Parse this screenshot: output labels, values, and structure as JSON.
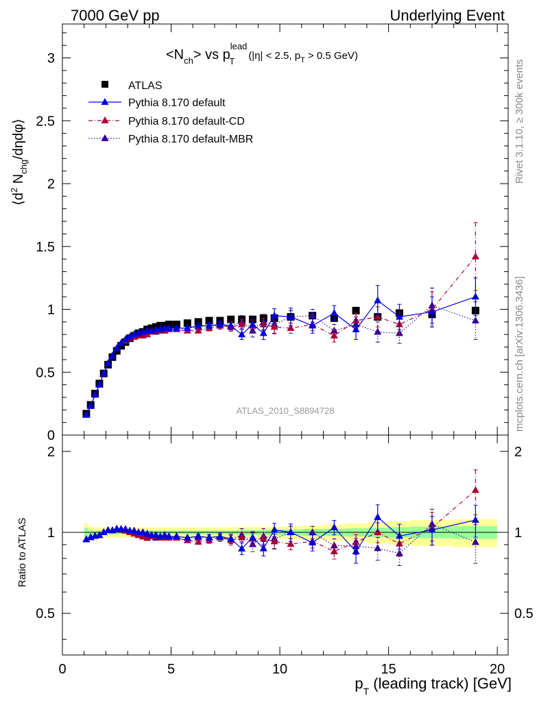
{
  "header": {
    "left": "7000 GeV pp",
    "right": "Underlying Event"
  },
  "plot_title": {
    "main": "<N",
    "sub1": "ch",
    "mid": "> vs p",
    "sup": "lead",
    "sub2": "T",
    "cuts_a": "(|η| < 2.5, p",
    "cuts_sub": "T",
    "cuts_b": " > 0.5 GeV)"
  },
  "side_labels": {
    "rivet": "Rivet 3.1.10, ≥ 300k events",
    "mcplots": "mcplots.cern.ch [arXiv:1306.3436]"
  },
  "analysis_label": "ATLAS_2010_S8894728",
  "ylabel_top": {
    "a": "⟨d",
    "sup": "2",
    "b": " N",
    "sub": "chg",
    "c": "/dηdφ⟩"
  },
  "ylabel_bottom": "Ratio to ATLAS",
  "xlabel": {
    "a": "p",
    "sub": "T",
    "b": " (leading track) [GeV]"
  },
  "legend": [
    "ATLAS",
    "Pythia 8.170 default",
    "Pythia 8.170 default-CD",
    "Pythia 8.170 default-MBR"
  ],
  "colors": {
    "data": "#000000",
    "default": "#0000dd",
    "cd": "#aa0033",
    "mbr": "#330099",
    "band_inner": "#99ff99",
    "band_outer": "#ffff99"
  },
  "chart_data": {
    "type": "scatter",
    "xlim": [
      0,
      20.5
    ],
    "ylim": [
      0,
      3.27
    ],
    "ratio_ylim": [
      0.35,
      2.3
    ],
    "x_ticks": [
      "0",
      "5",
      "10",
      "15",
      "20"
    ],
    "y_ticks": [
      "0",
      "0.5",
      "1",
      "1.5",
      "2",
      "2.5",
      "3"
    ],
    "ratio_ticks": [
      "0.5",
      "1",
      "2"
    ],
    "x": [
      1.1,
      1.3,
      1.5,
      1.7,
      1.9,
      2.1,
      2.3,
      2.5,
      2.7,
      2.9,
      3.1,
      3.3,
      3.5,
      3.7,
      3.9,
      4.1,
      4.3,
      4.5,
      4.7,
      4.9,
      5.25,
      5.75,
      6.25,
      6.75,
      7.25,
      7.75,
      8.25,
      8.75,
      9.25,
      9.75,
      10.5,
      11.5,
      12.5,
      13.5,
      14.5,
      15.5,
      17.0,
      19.0
    ],
    "series": [
      {
        "name": "ATLAS",
        "values": [
          0.17,
          0.24,
          0.33,
          0.41,
          0.49,
          0.56,
          0.62,
          0.67,
          0.71,
          0.74,
          0.77,
          0.79,
          0.81,
          0.82,
          0.84,
          0.85,
          0.86,
          0.87,
          0.87,
          0.88,
          0.88,
          0.89,
          0.9,
          0.91,
          0.91,
          0.92,
          0.92,
          0.92,
          0.93,
          0.93,
          0.94,
          0.95,
          0.93,
          0.99,
          0.94,
          0.97,
          0.96,
          0.99
        ],
        "errors": [
          0.005,
          0.005,
          0.005,
          0.005,
          0.005,
          0.005,
          0.005,
          0.005,
          0.005,
          0.005,
          0.005,
          0.005,
          0.005,
          0.005,
          0.005,
          0.005,
          0.006,
          0.006,
          0.006,
          0.006,
          0.007,
          0.008,
          0.009,
          0.01,
          0.011,
          0.012,
          0.013,
          0.014,
          0.015,
          0.016,
          0.018,
          0.02,
          0.022,
          0.025,
          0.03,
          0.035,
          0.04,
          0.06
        ]
      },
      {
        "name": "Pythia 8.170 default",
        "values": [
          0.16,
          0.23,
          0.32,
          0.4,
          0.49,
          0.57,
          0.63,
          0.69,
          0.73,
          0.76,
          0.78,
          0.8,
          0.81,
          0.82,
          0.83,
          0.83,
          0.84,
          0.84,
          0.85,
          0.85,
          0.85,
          0.85,
          0.87,
          0.87,
          0.88,
          0.87,
          0.8,
          0.88,
          0.81,
          0.95,
          0.94,
          0.87,
          0.97,
          0.84,
          1.07,
          0.94,
          0.98,
          1.1
        ],
        "errors": [
          0.004,
          0.004,
          0.005,
          0.005,
          0.005,
          0.006,
          0.006,
          0.006,
          0.007,
          0.007,
          0.008,
          0.008,
          0.009,
          0.009,
          0.01,
          0.01,
          0.01,
          0.012,
          0.012,
          0.014,
          0.012,
          0.015,
          0.018,
          0.022,
          0.028,
          0.035,
          0.04,
          0.045,
          0.05,
          0.055,
          0.07,
          0.06,
          0.06,
          0.08,
          0.12,
          0.1,
          0.12,
          0.15
        ]
      },
      {
        "name": "Pythia 8.170 default-CD",
        "values": [
          0.16,
          0.23,
          0.32,
          0.4,
          0.49,
          0.57,
          0.63,
          0.69,
          0.73,
          0.75,
          0.77,
          0.78,
          0.79,
          0.79,
          0.8,
          0.82,
          0.83,
          0.83,
          0.83,
          0.84,
          0.84,
          0.83,
          0.83,
          0.85,
          0.87,
          0.86,
          0.88,
          0.87,
          0.88,
          0.86,
          0.85,
          0.88,
          0.79,
          0.91,
          0.94,
          0.88,
          1.0,
          1.42
        ],
        "errors": [
          0.004,
          0.004,
          0.005,
          0.005,
          0.005,
          0.006,
          0.006,
          0.006,
          0.007,
          0.007,
          0.008,
          0.008,
          0.009,
          0.009,
          0.01,
          0.01,
          0.01,
          0.012,
          0.012,
          0.014,
          0.012,
          0.015,
          0.018,
          0.022,
          0.028,
          0.035,
          0.04,
          0.045,
          0.05,
          0.055,
          0.04,
          0.05,
          0.05,
          0.06,
          0.08,
          0.09,
          0.14,
          0.27
        ]
      },
      {
        "name": "Pythia 8.170 default-MBR",
        "values": [
          0.16,
          0.23,
          0.32,
          0.4,
          0.49,
          0.57,
          0.63,
          0.69,
          0.73,
          0.76,
          0.78,
          0.8,
          0.8,
          0.81,
          0.82,
          0.83,
          0.82,
          0.83,
          0.83,
          0.84,
          0.85,
          0.85,
          0.86,
          0.87,
          0.87,
          0.87,
          0.9,
          0.83,
          0.9,
          0.88,
          0.94,
          0.95,
          0.83,
          0.88,
          0.82,
          0.81,
          1.03,
          0.91
        ],
        "errors": [
          0.004,
          0.004,
          0.005,
          0.005,
          0.005,
          0.006,
          0.006,
          0.006,
          0.007,
          0.007,
          0.008,
          0.008,
          0.009,
          0.009,
          0.01,
          0.01,
          0.01,
          0.012,
          0.012,
          0.014,
          0.012,
          0.015,
          0.018,
          0.022,
          0.028,
          0.035,
          0.05,
          0.05,
          0.06,
          0.07,
          0.05,
          0.05,
          0.05,
          0.06,
          0.08,
          0.08,
          0.14,
          0.15
        ]
      }
    ],
    "ratio_band": {
      "x_edges": [
        1.0,
        1.2,
        1.4,
        1.6,
        1.8,
        2.0,
        2.2,
        2.4,
        2.6,
        2.8,
        3.0,
        3.2,
        3.4,
        3.6,
        3.8,
        4.0,
        4.2,
        4.4,
        4.6,
        4.8,
        5.0,
        5.5,
        6.0,
        6.5,
        7.0,
        7.5,
        8.0,
        8.5,
        9.0,
        9.5,
        10.0,
        11.0,
        12.0,
        13.0,
        14.0,
        15.0,
        16.0,
        18.0,
        20.0
      ],
      "inner": [
        0.04,
        0.02,
        0.015,
        0.015,
        0.015,
        0.015,
        0.015,
        0.015,
        0.015,
        0.015,
        0.015,
        0.015,
        0.015,
        0.015,
        0.015,
        0.015,
        0.015,
        0.015,
        0.015,
        0.015,
        0.015,
        0.015,
        0.015,
        0.015,
        0.015,
        0.015,
        0.02,
        0.02,
        0.02,
        0.025,
        0.025,
        0.03,
        0.03,
        0.035,
        0.04,
        0.045,
        0.05,
        0.055
      ],
      "outer": [
        0.08,
        0.05,
        0.045,
        0.045,
        0.045,
        0.045,
        0.045,
        0.045,
        0.045,
        0.045,
        0.045,
        0.045,
        0.045,
        0.045,
        0.045,
        0.045,
        0.045,
        0.045,
        0.045,
        0.045,
        0.045,
        0.045,
        0.045,
        0.045,
        0.045,
        0.045,
        0.05,
        0.05,
        0.05,
        0.05,
        0.055,
        0.06,
        0.07,
        0.08,
        0.09,
        0.1,
        0.11,
        0.12
      ]
    }
  }
}
